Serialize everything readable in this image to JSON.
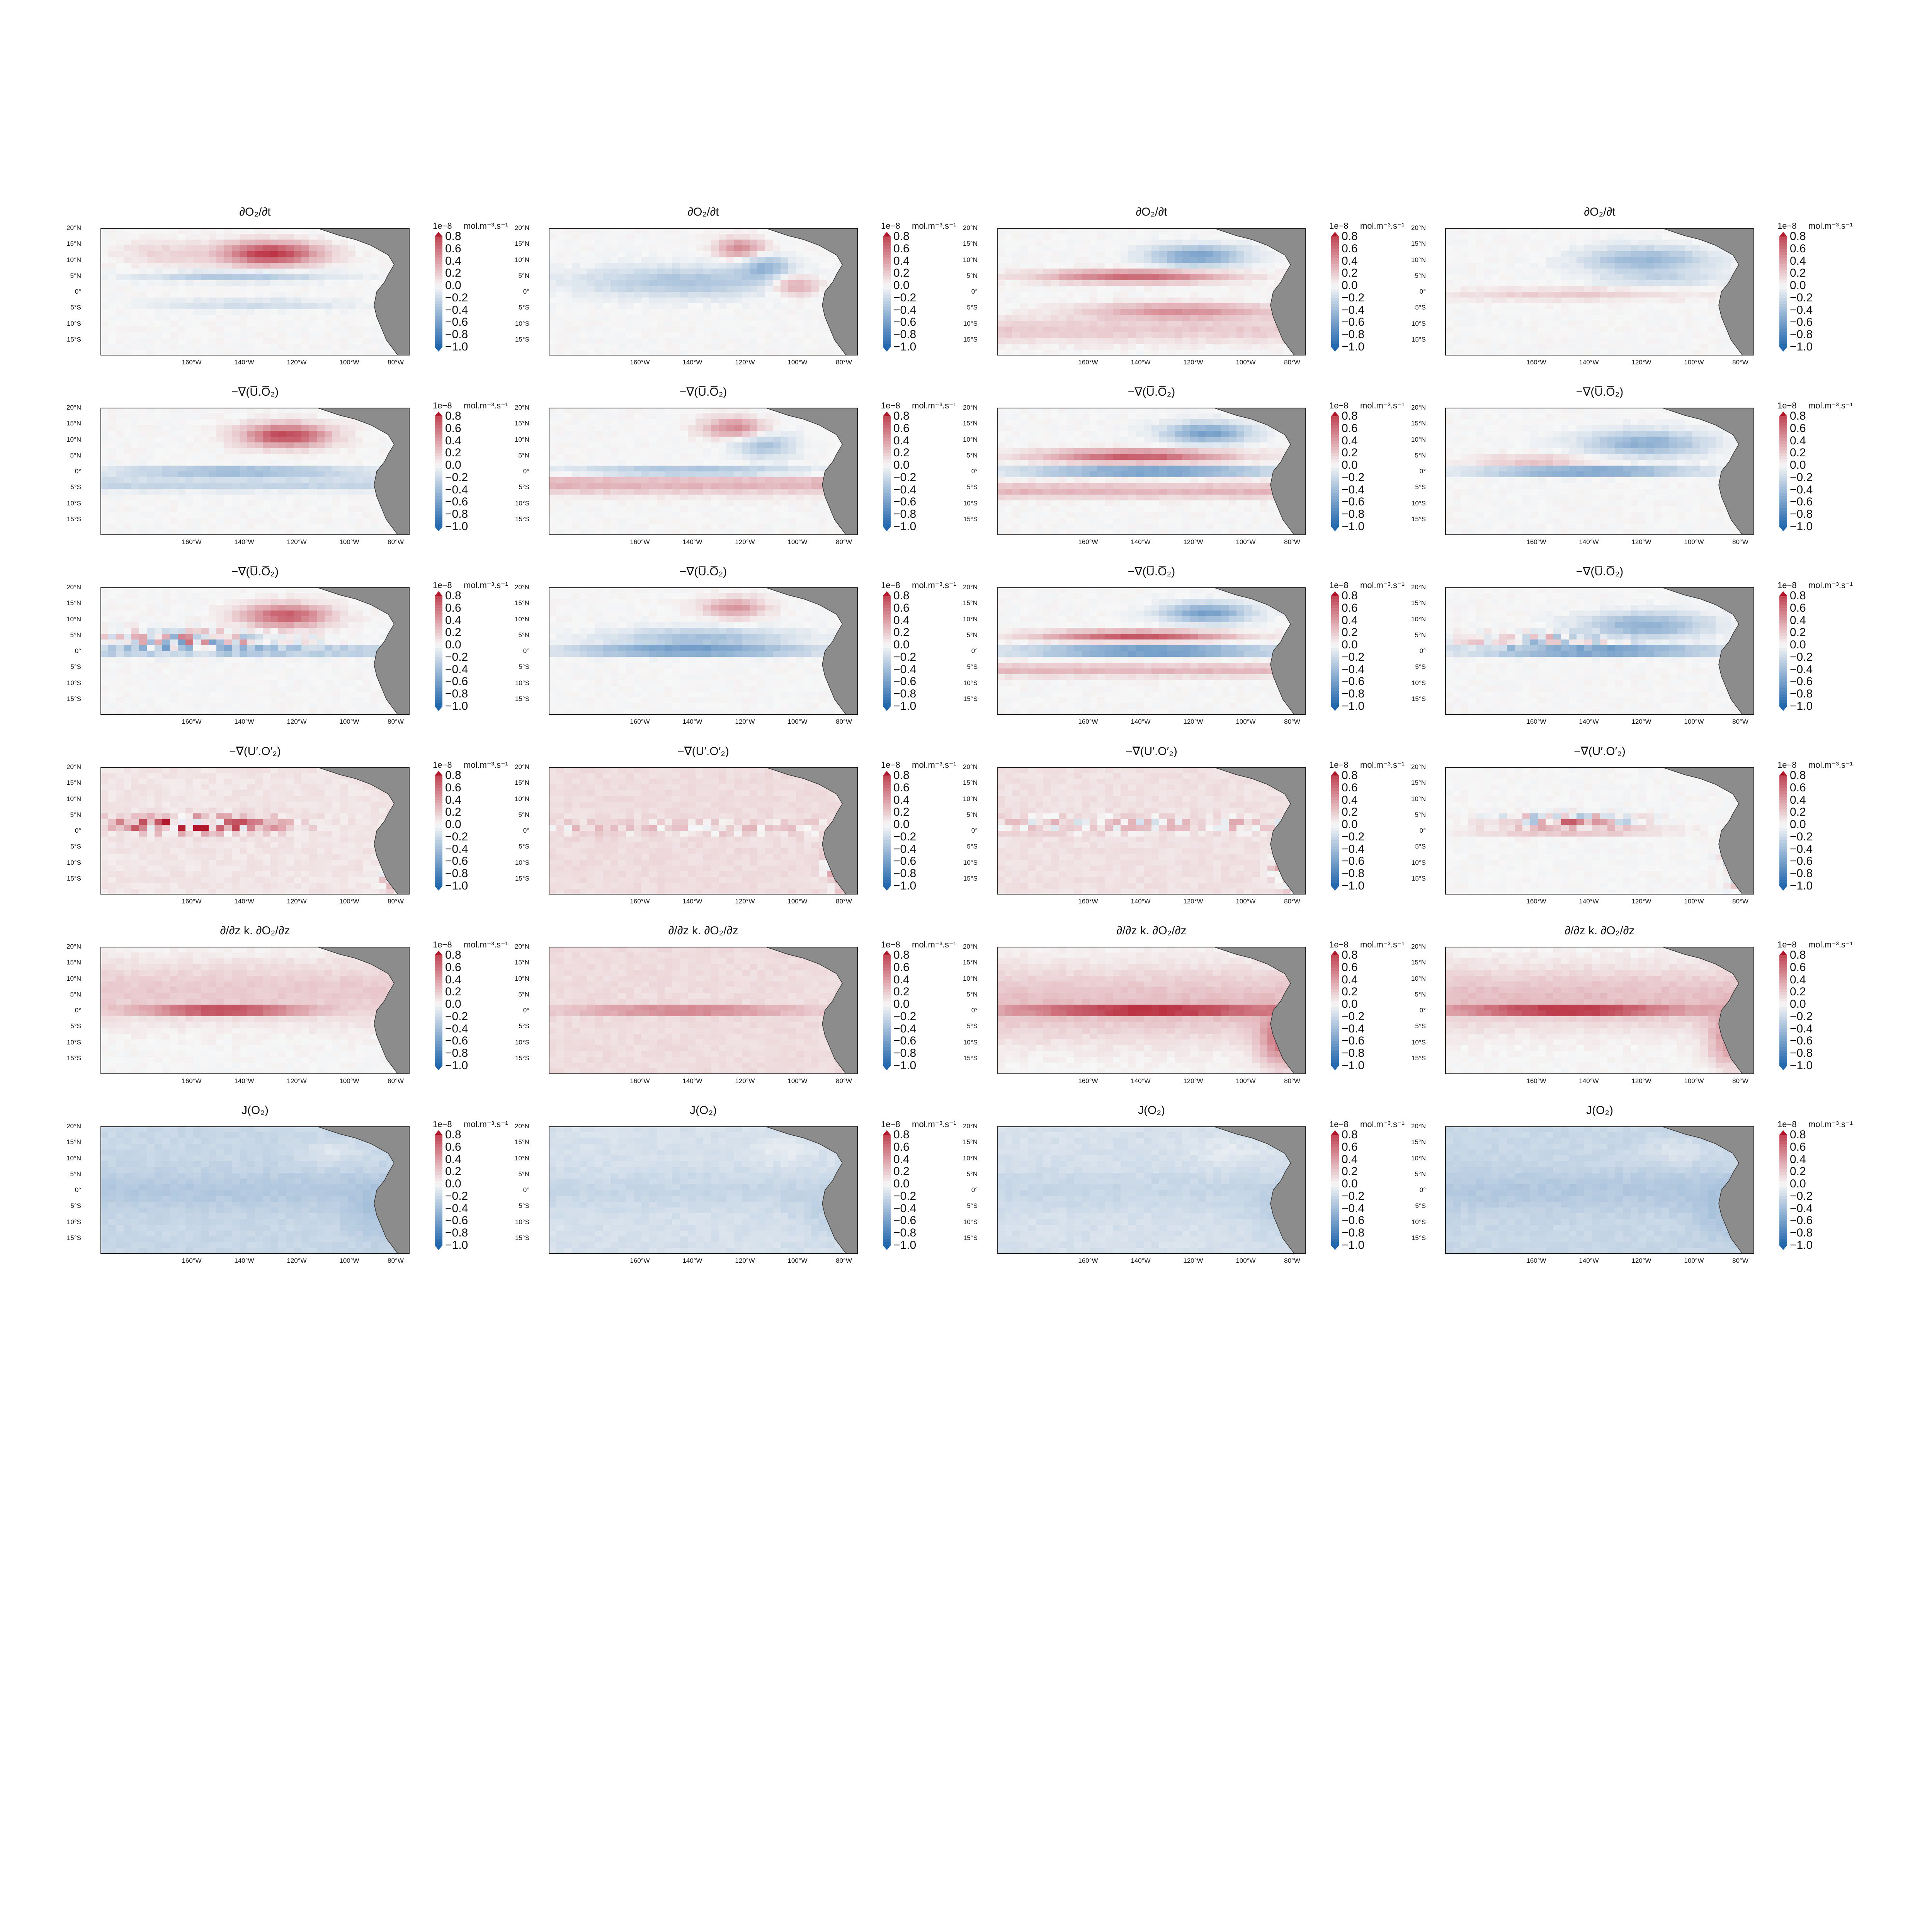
{
  "figure": {
    "row_titles": [
      "∂O₂/∂t",
      "−∇(U̅.O̅₂)",
      "−∇(U̅.O̅₂)",
      "−∇(U′.O′₂)",
      "∂/∂z k. ∂O₂/∂z",
      "J(O₂)"
    ],
    "lat_ticks": [
      "20°N",
      "15°N",
      "10°N",
      "5°N",
      "0°",
      "5°S",
      "10°S",
      "15°S"
    ],
    "lon_ticks": [
      "160°W",
      "140°W",
      "120°W",
      "100°W",
      "80°W"
    ],
    "colorbar": {
      "ticks": [
        "0.8",
        "0.6",
        "0.4",
        "0.2",
        "0.0",
        "−0.2",
        "−0.4",
        "−0.6",
        "−0.8",
        "−1.0"
      ],
      "multiplier": "1e−8",
      "unit": "mol.m⁻³.s⁻¹",
      "colors": {
        "negative": "#2166ac",
        "mid": "#f7f7f7",
        "positive": "#b2182b",
        "land": "#8c8c8c"
      }
    }
  },
  "chart_data": {
    "type": "heatmap",
    "layout": "6 rows × 4 columns of maps",
    "x_axis": "longitude",
    "y_axis": "latitude",
    "value_range": [
      -1.0,
      0.8
    ],
    "rows": [
      {
        "term": "∂O₂/∂t",
        "pattern": "tendency; alternating zonal bands north of equator"
      },
      {
        "term": "−∇(U̅.O̅₂)",
        "pattern": "mean advection; negative along equator"
      },
      {
        "term": "−∇(U̅.O̅₂)",
        "pattern": "advection; noisy equatorial band"
      },
      {
        "term": "−∇(U′.O′₂)",
        "pattern": "eddy advection; weak, noisy near equator and coast"
      },
      {
        "term": "∂/∂z k. ∂O₂/∂z",
        "pattern": "vertical mixing; positive along equator"
      },
      {
        "term": "J(O₂)",
        "pattern": "source/sink; weakly negative everywhere"
      }
    ]
  }
}
